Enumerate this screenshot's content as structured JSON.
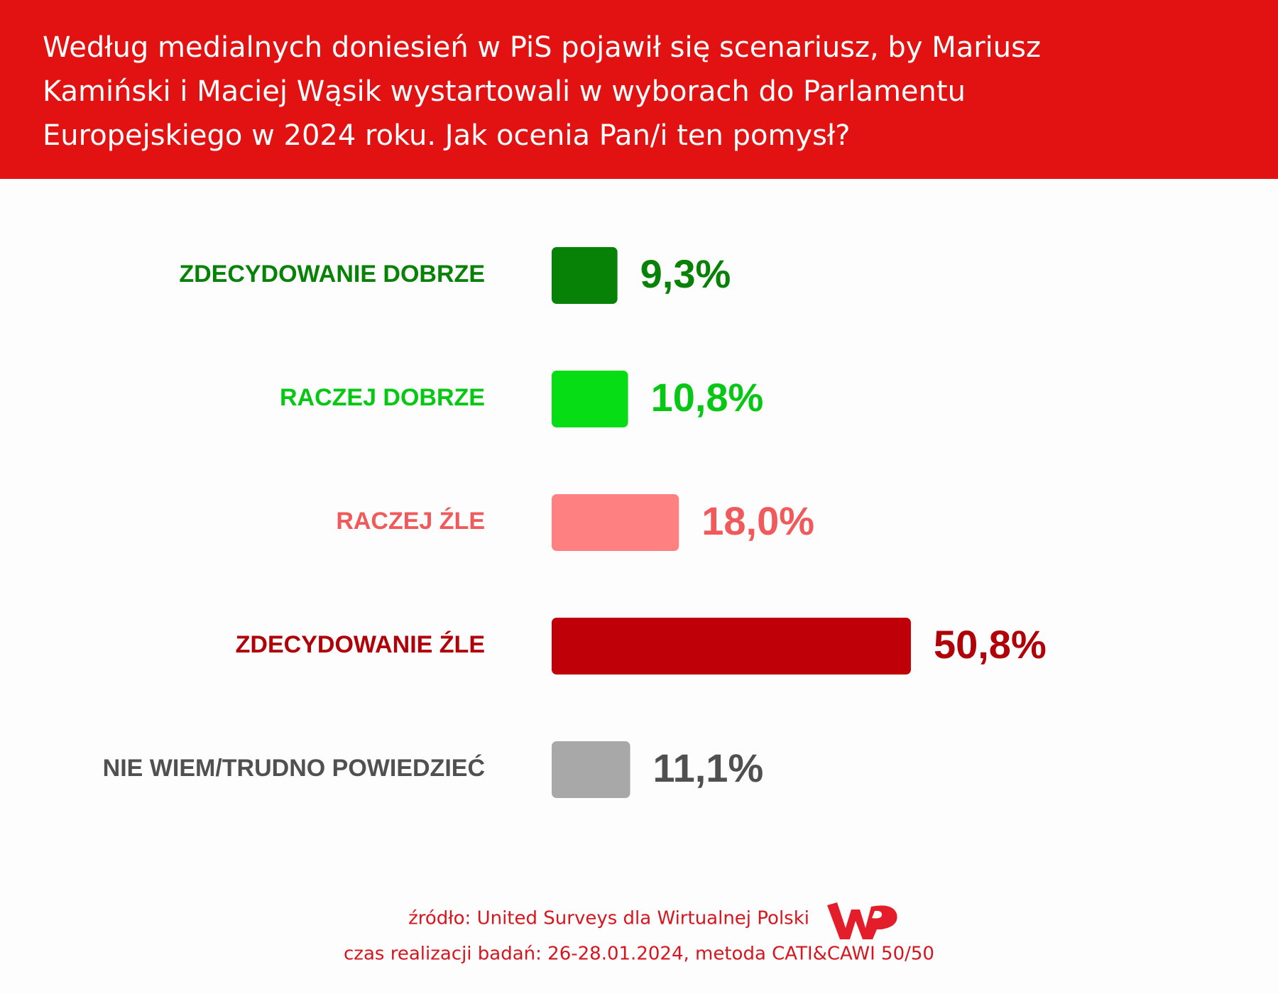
{
  "chart_data": {
    "type": "bar",
    "orientation": "horizontal",
    "title_lines": [
      "Według medialnych doniesień w PiS pojawił się scenariusz, by Mariusz",
      "Kamiński i Maciej Wąsik wystartowali w wyborach do Parlamentu",
      "Europejskiego w 2024 roku. Jak ocenia Pan/i ten pomysł?"
    ],
    "categories": [
      "ZDECYDOWANIE DOBRZE",
      "RACZEJ DOBRZE",
      "RACZEJ ŹLE",
      "ZDECYDOWANIE ŹLE",
      "NIE WIEM/TRUDNO POWIEDZIEĆ"
    ],
    "values": [
      9.3,
      10.8,
      18.0,
      50.8,
      11.1
    ],
    "value_labels": [
      "9,3%",
      "10,8%",
      "18,0%",
      "50,8%",
      "11,1%"
    ],
    "colors": [
      "#078207",
      "#06dd14",
      "#ff8080",
      "#c00008",
      "#a8a8a8"
    ],
    "text_colors": [
      "#078207",
      "#06c814",
      "#f05a5a",
      "#b00008",
      "#505050"
    ],
    "source": "źródło: United Surveys dla Wirtualnej Polski",
    "note": "czas realizacji badań: 26-28.01.2024, metoda CATI&CAWI 50/50"
  }
}
